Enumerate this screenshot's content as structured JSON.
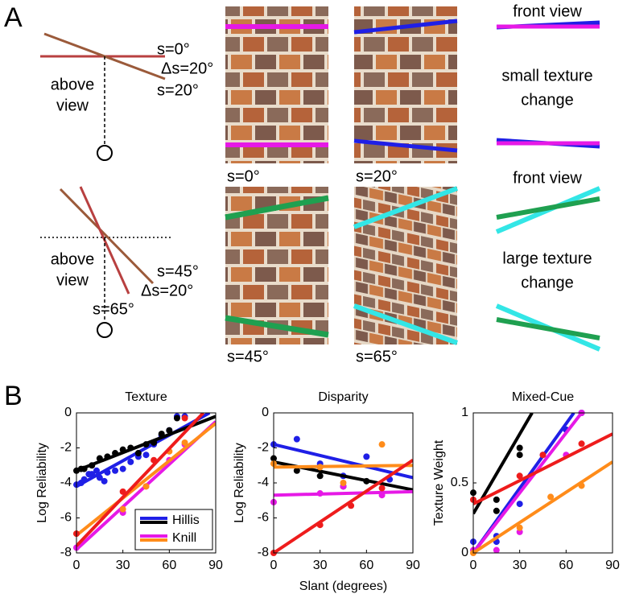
{
  "panel_a": {
    "label": "A",
    "rows": [
      {
        "diagram": {
          "labels": [
            "s=0°",
            "Δs=20°",
            "s=20°"
          ],
          "view": [
            "above",
            "view"
          ]
        },
        "captions": [
          "s=0°",
          "s=20°"
        ],
        "notes": [
          [
            "front view"
          ],
          [
            "small texture",
            "change"
          ]
        ]
      },
      {
        "diagram": {
          "labels": [
            "s=45°",
            "Δs=20°",
            "s=65°"
          ],
          "view": [
            "above",
            "view"
          ]
        },
        "captions": [
          "s=45°",
          "s=65°"
        ],
        "notes": [
          [
            "front view"
          ],
          [
            "large texture",
            "change"
          ]
        ]
      }
    ]
  },
  "panel_b": {
    "label": "B"
  },
  "chart_data": [
    {
      "type": "scatter-fit",
      "title": "Texture",
      "ylabel": "Log Reliability",
      "xlim": [
        0,
        90
      ],
      "ylim": [
        -8,
        0
      ],
      "xticks": [
        0,
        30,
        60,
        90
      ],
      "yticks": [
        -8,
        -6,
        -4,
        -2,
        0
      ],
      "legend": true,
      "legend_position": "lower right",
      "groups": [
        {
          "name": "Hillis",
          "series": [
            {
              "color": "#1f1fe6",
              "x": [
                0,
                3,
                5,
                8,
                10,
                13,
                15,
                18,
                20,
                25,
                30,
                35,
                40,
                45,
                50,
                55,
                60,
                65,
                70
              ],
              "values": [
                -4.1,
                -4.0,
                -3.8,
                -3.5,
                -3.5,
                -3.3,
                -3.7,
                -3.9,
                -3.4,
                -3.3,
                -3.2,
                -2.8,
                -2.5,
                -2.4,
                -1.8,
                -1.3,
                -1.0,
                -0.2,
                -0.2
              ],
              "fit": {
                "x": [
                  0,
                  86
                ],
                "values": [
                  -4.2,
                  0
                ]
              }
            },
            {
              "color": "#000000",
              "x": [
                0,
                3,
                5,
                10,
                15,
                20,
                25,
                30,
                35,
                40,
                45,
                50,
                55,
                60,
                65
              ],
              "values": [
                -3.3,
                -3.2,
                -3.2,
                -3.0,
                -2.6,
                -2.5,
                -2.3,
                -2.1,
                -2.0,
                -2.3,
                -1.8,
                -1.7,
                -1.2,
                -1.0,
                -0.3
              ],
              "fit": {
                "x": [
                  0,
                  90
                ],
                "values": [
                  -3.3,
                  -0.2
                ]
              }
            }
          ]
        },
        {
          "name": "Knill",
          "series": [
            {
              "color": "#e619e6",
              "x": [
                0,
                30,
                45,
                60,
                70
              ],
              "values": [
                -7.7,
                -5.7,
                -4.2,
                -2.7,
                -1.8
              ],
              "fit": {
                "x": [
                  0,
                  90
                ],
                "values": [
                  -7.8,
                  -0.5
                ]
              }
            },
            {
              "color": "#ff8c1a",
              "x": [
                0,
                30,
                45,
                60,
                70
              ],
              "values": [
                -6.9,
                -5.5,
                -4.2,
                -2.2,
                -1.7
              ],
              "fit": {
                "x": [
                  0,
                  90
                ],
                "values": [
                  -7.0,
                  -0.6
                ]
              }
            }
          ]
        },
        {
          "series": [
            {
              "color": "#ee1c1c",
              "x": [
                0,
                30,
                50,
                70
              ],
              "values": [
                -6.9,
                -4.5,
                -2.7,
                -0.3
              ],
              "fit": {
                "x": [
                  0,
                  82
                ],
                "values": [
                  -7.6,
                  0
                ]
              }
            }
          ]
        }
      ]
    },
    {
      "type": "scatter-fit",
      "title": "Disparity",
      "ylabel": "Log Reliability",
      "xlabel": "Slant (degrees)",
      "xlim": [
        0,
        90
      ],
      "ylim": [
        -8,
        0
      ],
      "xticks": [
        0,
        30,
        60,
        90
      ],
      "yticks": [
        -8,
        -6,
        -4,
        -2,
        0
      ],
      "legend": false,
      "groups": [
        {
          "series": [
            {
              "color": "#1f1fe6",
              "x": [
                0,
                15,
                30,
                45,
                60,
                75
              ],
              "values": [
                -1.8,
                -1.5,
                -2.9,
                -3.6,
                -2.5,
                -3.8
              ],
              "fit": {
                "x": [
                  0,
                  90
                ],
                "values": [
                  -1.8,
                  -3.7
                ]
              }
            },
            {
              "color": "#000000",
              "x": [
                0,
                15,
                30,
                45,
                60
              ],
              "values": [
                -2.6,
                -3.3,
                -3.6,
                -4.2,
                -3.9
              ],
              "fit": {
                "x": [
                  0,
                  90
                ],
                "values": [
                  -2.8,
                  -4.4
                ]
              }
            }
          ]
        },
        {
          "series": [
            {
              "color": "#e619e6",
              "x": [
                0,
                30,
                45,
                70
              ],
              "values": [
                -5.1,
                -4.6,
                -4.2,
                -4.7
              ],
              "fit": {
                "x": [
                  0,
                  90
                ],
                "values": [
                  -4.7,
                  -4.5
                ]
              }
            },
            {
              "color": "#ff8c1a",
              "x": [
                0,
                30,
                45,
                70
              ],
              "values": [
                -2.9,
                -3.1,
                -4.0,
                -1.8
              ],
              "fit": {
                "x": [
                  0,
                  90
                ],
                "values": [
                  -3.1,
                  -3.0
                ]
              }
            }
          ]
        },
        {
          "series": [
            {
              "color": "#ee1c1c",
              "x": [
                0,
                30,
                50,
                70
              ],
              "values": [
                -8,
                -6.4,
                -5.3,
                -4.3
              ],
              "fit": {
                "x": [
                  0,
                  90
                ],
                "values": [
                  -8,
                  -2.7
                ]
              }
            }
          ]
        }
      ]
    },
    {
      "type": "scatter-fit",
      "title": "Mixed-Cue",
      "ylabel": "Texture Weight",
      "xlim": [
        0,
        90
      ],
      "ylim": [
        0,
        1
      ],
      "xticks": [
        0,
        30,
        60,
        90
      ],
      "yticks": [
        0,
        0.5,
        1
      ],
      "legend": false,
      "groups": [
        {
          "series": [
            {
              "color": "#1f1fe6",
              "x": [
                0,
                15,
                15,
                30,
                45,
                60,
                70
              ],
              "values": [
                0.08,
                0.08,
                0.12,
                0.35,
                0.7,
                0.88,
                1.0
              ],
              "fit": {
                "x": [
                  0,
                  65
                ],
                "values": [
                  0,
                  1
                ]
              }
            },
            {
              "color": "#000000",
              "x": [
                0,
                15,
                15,
                30,
                30
              ],
              "values": [
                0.43,
                0.38,
                0.3,
                0.75,
                0.7
              ],
              "fit": {
                "x": [
                  0,
                  38
                ],
                "values": [
                  0.28,
                  1
                ]
              }
            }
          ]
        },
        {
          "series": [
            {
              "color": "#e619e6",
              "x": [
                0,
                15,
                30,
                60,
                70
              ],
              "values": [
                0.02,
                0.02,
                0.15,
                0.7,
                1.0
              ],
              "fit": {
                "x": [
                  0,
                  70
                ],
                "values": [
                  0,
                  1
                ]
              }
            },
            {
              "color": "#ff8c1a",
              "x": [
                0,
                30,
                50,
                70
              ],
              "values": [
                0.0,
                0.18,
                0.4,
                0.48
              ],
              "fit": {
                "x": [
                  0,
                  90
                ],
                "values": [
                  0,
                  0.65
                ]
              }
            }
          ]
        },
        {
          "series": [
            {
              "color": "#ee1c1c",
              "x": [
                0,
                30,
                45,
                70
              ],
              "values": [
                0.38,
                0.55,
                0.7,
                0.78
              ],
              "fit": {
                "x": [
                  0,
                  90
                ],
                "values": [
                  0.35,
                  0.85
                ]
              }
            }
          ]
        }
      ]
    }
  ]
}
